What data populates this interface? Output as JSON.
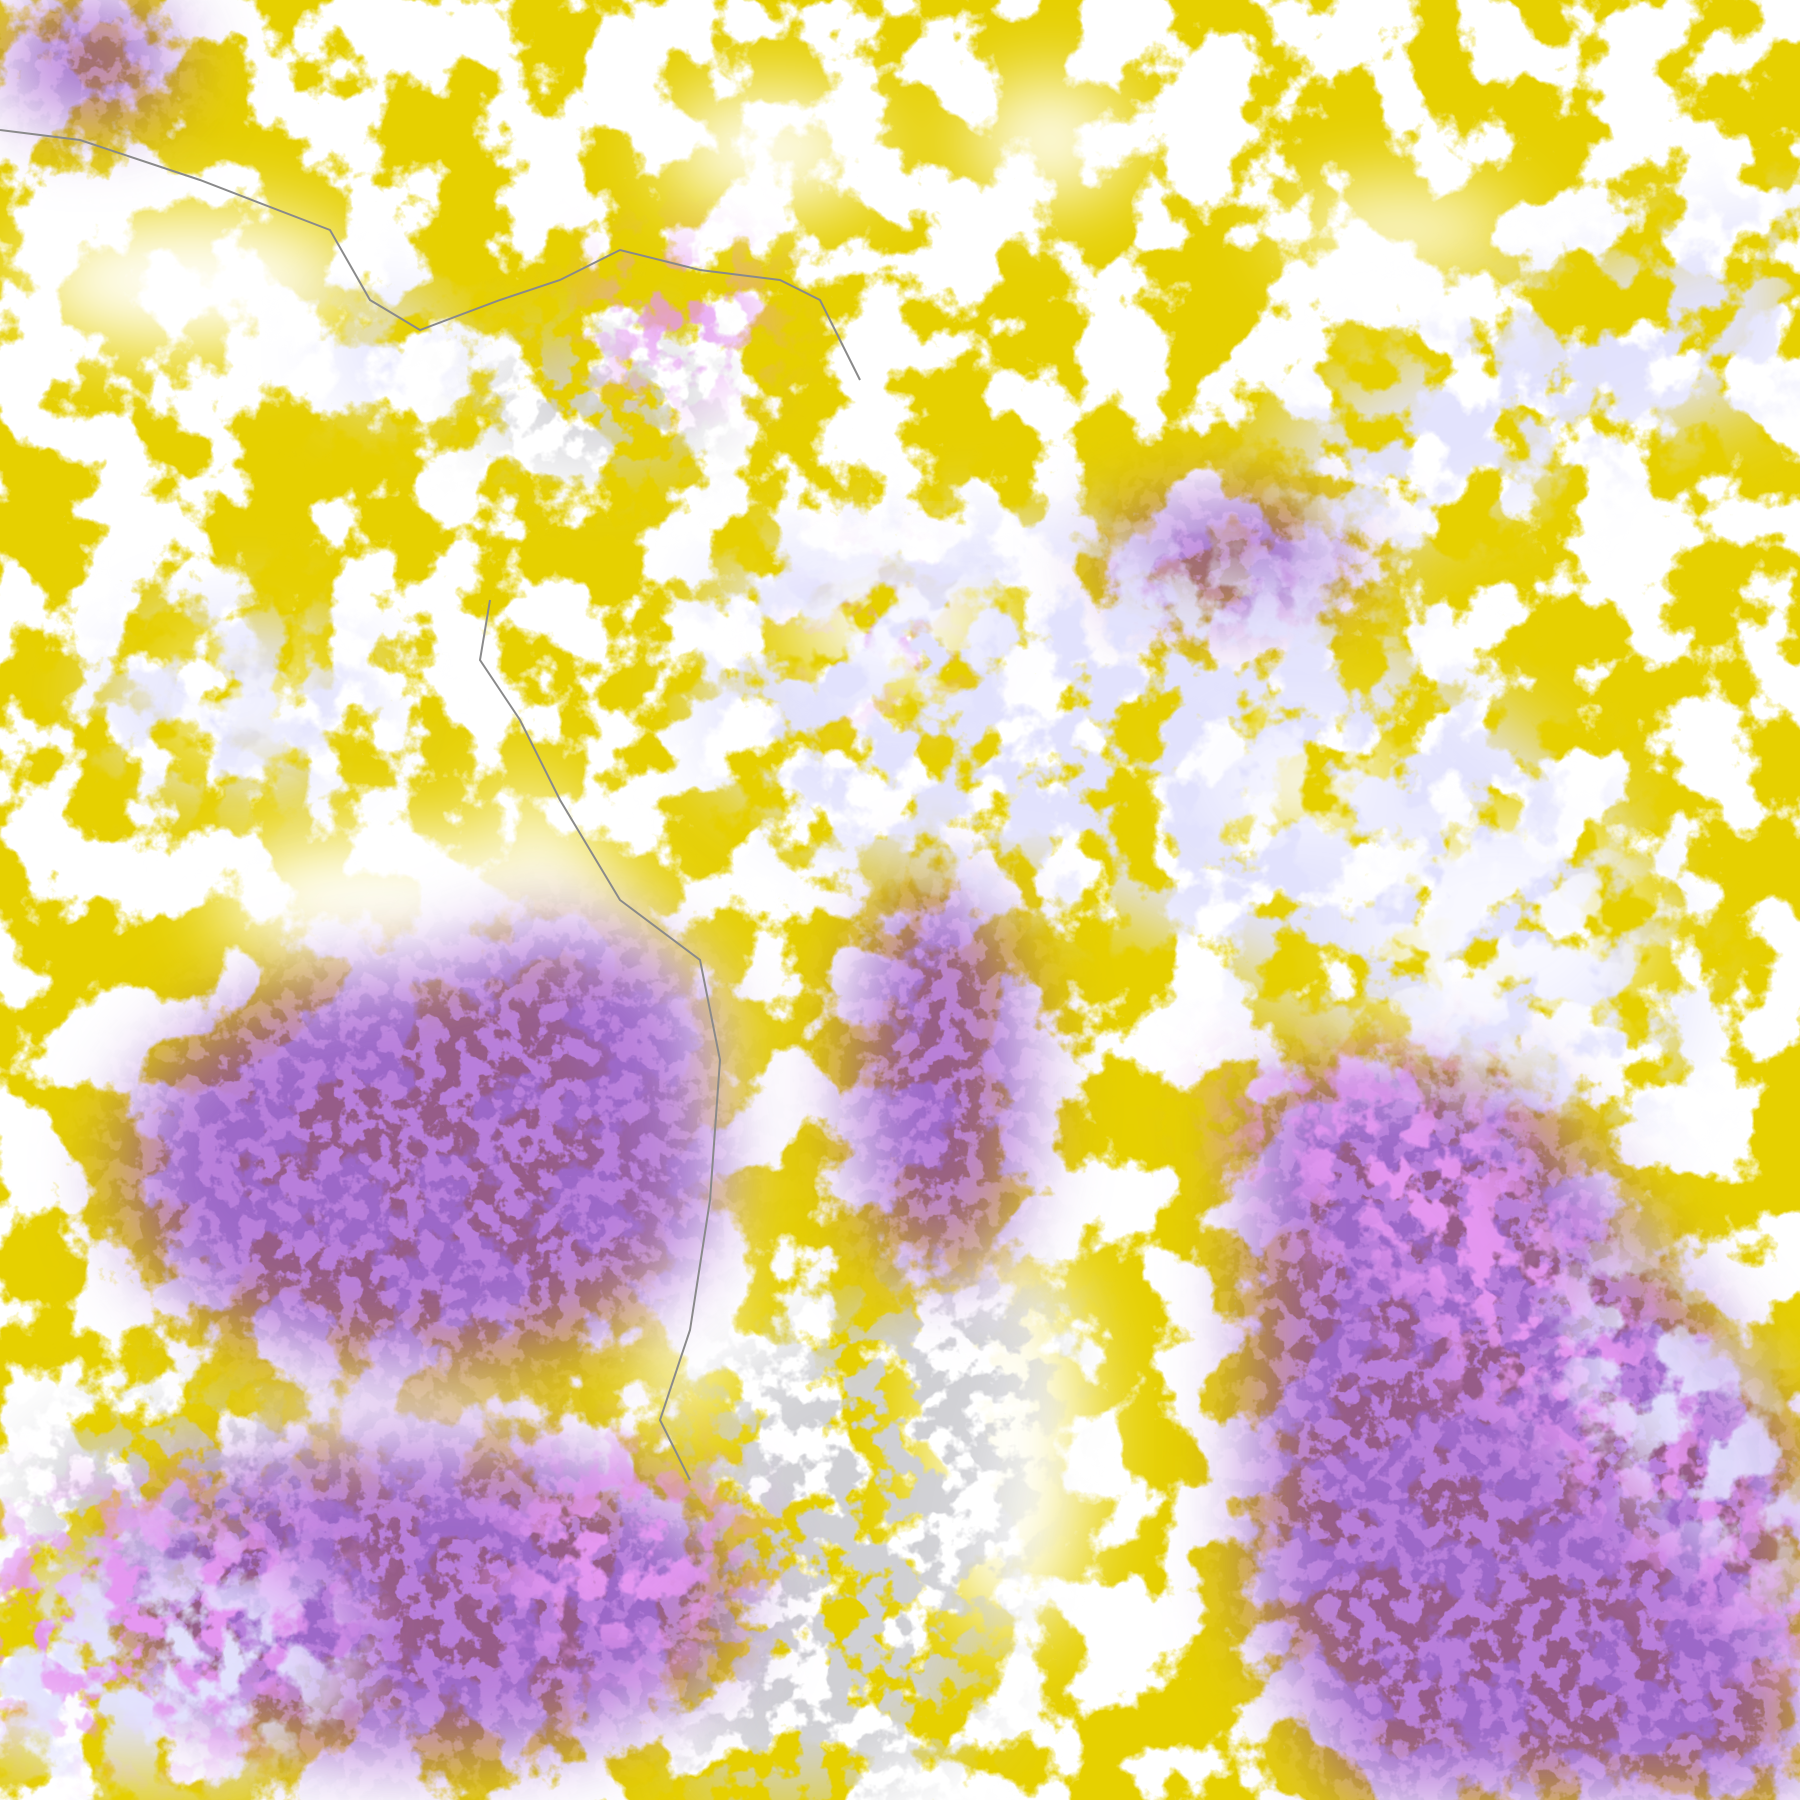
{
  "image": {
    "kind": "false-color satellite cloud imagery",
    "colors": {
      "background": "#ffffff",
      "gold": "#c9a000",
      "purple": "#7b35b5",
      "magenta": "#c64fe0",
      "lavender": "#a9a9f5",
      "pale_cloud": "#eeeeff",
      "gray": "#a0a0a8",
      "coastline": "#8a8a8a"
    }
  }
}
